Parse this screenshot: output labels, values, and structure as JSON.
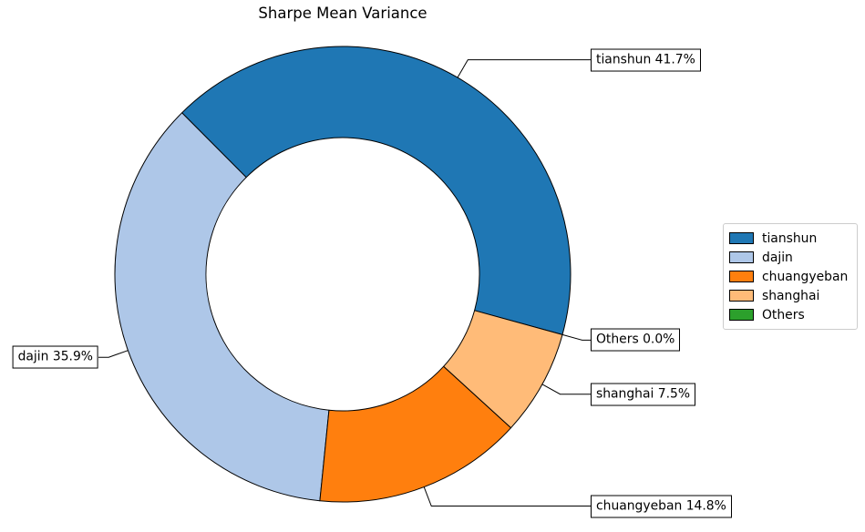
{
  "title": "Sharpe Mean Variance",
  "chart_data": {
    "type": "pie",
    "subtype": "donut",
    "title": "Sharpe Mean Variance",
    "labels": [
      "tianshun",
      "dajin",
      "chuangyeban",
      "shanghai",
      "Others"
    ],
    "values": [
      41.7,
      35.9,
      14.8,
      7.5,
      0.0
    ],
    "colors": [
      "#1f77b4",
      "#aec7e8",
      "#ff7f0e",
      "#ffbb78",
      "#2ca02c"
    ],
    "edge_color": "#000000",
    "start_angle_deg": -15.4,
    "direction": "counterclockwise",
    "inner_radius_ratio": 0.6,
    "legend_position": "center right",
    "grid": false,
    "annotations": [
      "tianshun 41.7%",
      "dajin 35.9%",
      "chuangyeban 14.8%",
      "shanghai 7.5%",
      "Others 0.0%"
    ]
  }
}
